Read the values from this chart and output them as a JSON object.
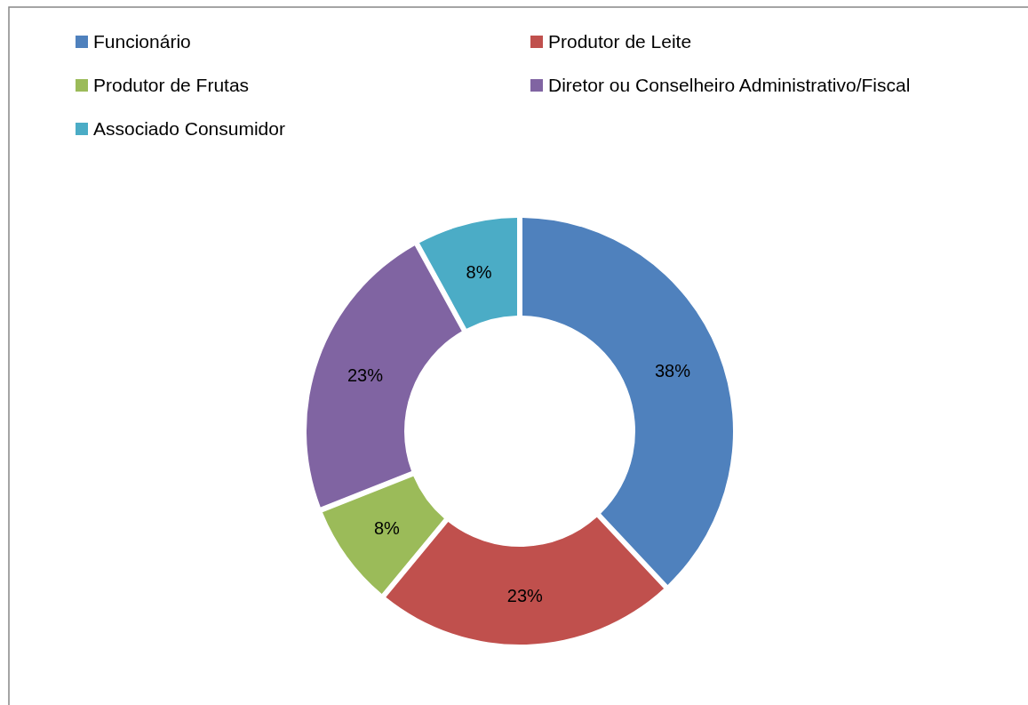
{
  "chart_data": {
    "type": "donut",
    "categories": [
      "Funcionário",
      "Produtor de Leite",
      "Produtor de Frutas",
      "Diretor ou Conselheiro Administrativo/Fiscal",
      "Associado Consumidor"
    ],
    "values": [
      38,
      23,
      8,
      23,
      8
    ],
    "colors": [
      "#4f81bd",
      "#c0504d",
      "#9bbb59",
      "#8064a2",
      "#4bacc6"
    ],
    "value_labels": [
      "38%",
      "23%",
      "8%",
      "23%",
      "8%"
    ],
    "legend": "top"
  }
}
